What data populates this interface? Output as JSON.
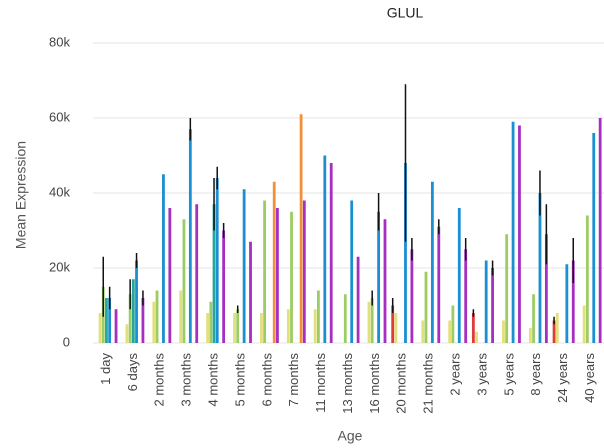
{
  "chart_data": {
    "type": "bar",
    "title": "GLUL",
    "x_label": "Age",
    "y_label": "Mean Expression",
    "categories": [
      "1 day",
      "6 days",
      "2 months",
      "3 months",
      "4 months",
      "5 months",
      "6 months",
      "7 months",
      "11 months",
      "13 months",
      "16 months",
      "20 months",
      "21 months",
      "2 years",
      "3 years",
      "5 years",
      "8 years",
      "24 years",
      "40 years"
    ],
    "series": [
      {
        "color": "#e03a3a",
        "values": [
          null,
          null,
          null,
          null,
          null,
          null,
          null,
          null,
          null,
          null,
          null,
          10000,
          null,
          null,
          8000,
          null,
          null,
          6000,
          null
        ],
        "errors": [
          null,
          null,
          null,
          null,
          null,
          null,
          null,
          null,
          null,
          null,
          null,
          2000,
          null,
          null,
          1000,
          null,
          null,
          1000,
          null
        ]
      },
      {
        "color": "#e3df7a",
        "values": [
          8000,
          5000,
          11000,
          14000,
          8000,
          8000,
          8000,
          9000,
          9000,
          null,
          11000,
          8000,
          6000,
          6000,
          3000,
          6000,
          4000,
          8000,
          10000
        ],
        "errors": [
          null,
          null,
          null,
          null,
          null,
          null,
          null,
          null,
          null,
          null,
          null,
          null,
          null,
          null,
          null,
          null,
          null,
          null,
          null
        ]
      },
      {
        "color": "#9ccc65",
        "values": [
          15000,
          13000,
          14000,
          33000,
          11000,
          9000,
          38000,
          35000,
          14000,
          13000,
          12000,
          null,
          19000,
          10000,
          null,
          29000,
          13000,
          null,
          34000
        ],
        "errors": [
          8000,
          4000,
          null,
          null,
          null,
          1000,
          null,
          null,
          null,
          null,
          2000,
          null,
          null,
          null,
          null,
          null,
          null,
          null,
          null
        ]
      },
      {
        "color": "#26a69a",
        "values": [
          12000,
          17000,
          null,
          null,
          37000,
          null,
          null,
          null,
          null,
          null,
          null,
          null,
          null,
          null,
          null,
          null,
          null,
          null,
          null
        ],
        "errors": [
          null,
          null,
          null,
          null,
          7000,
          null,
          null,
          null,
          null,
          null,
          null,
          null,
          null,
          null,
          null,
          null,
          null,
          null,
          null
        ]
      },
      {
        "color": "#1a8fd1",
        "values": [
          12000,
          22000,
          45000,
          57000,
          44000,
          41000,
          null,
          null,
          50000,
          38000,
          35000,
          48000,
          43000,
          36000,
          22000,
          59000,
          40000,
          21000,
          56000
        ],
        "errors": [
          3000,
          2000,
          null,
          3000,
          3000,
          null,
          null,
          null,
          null,
          null,
          5000,
          21000,
          null,
          null,
          null,
          null,
          6000,
          null,
          null
        ]
      },
      {
        "color": "#f0903a",
        "values": [
          null,
          null,
          null,
          null,
          null,
          null,
          43000,
          61000,
          null,
          null,
          null,
          null,
          null,
          null,
          null,
          null,
          null,
          null,
          null
        ],
        "errors": [
          null,
          null,
          null,
          null,
          null,
          null,
          null,
          null,
          null,
          null,
          null,
          null,
          null,
          null,
          null,
          null,
          null,
          null,
          null
        ]
      },
      {
        "color": "#a62fc1",
        "values": [
          9000,
          12000,
          36000,
          37000,
          30000,
          27000,
          36000,
          38000,
          48000,
          23000,
          33000,
          25000,
          31000,
          25000,
          20000,
          58000,
          29000,
          22000,
          60000
        ],
        "errors": [
          null,
          2000,
          null,
          null,
          2000,
          null,
          null,
          null,
          null,
          null,
          null,
          3000,
          2000,
          3000,
          2000,
          null,
          8000,
          6000,
          null
        ]
      }
    ],
    "ylim": [
      0,
      80000
    ],
    "yticks": [
      0,
      {
        "value": 20000,
        "label": "20k"
      },
      {
        "value": 40000,
        "label": "40k"
      },
      {
        "value": 60000,
        "label": "60k"
      },
      {
        "value": 80000,
        "label": "80k"
      }
    ],
    "grid": true
  }
}
